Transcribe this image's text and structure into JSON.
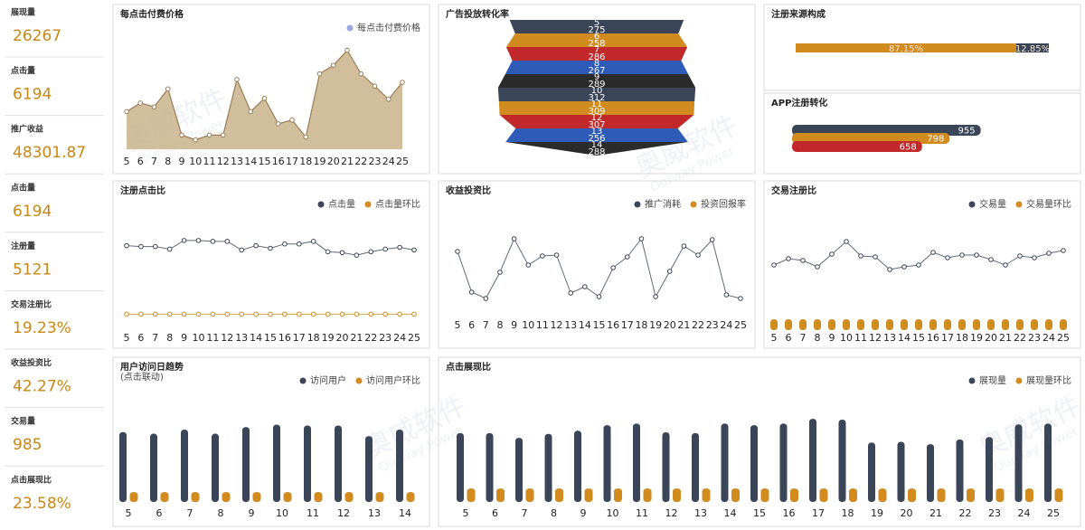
{
  "kpis": [
    {
      "label": "展现量",
      "value": "26267"
    },
    {
      "label": "点击量",
      "value": "6194"
    },
    {
      "label": "推广收益",
      "value": "48301.87"
    },
    {
      "label": "点击量",
      "value": "6194"
    },
    {
      "label": "注册量",
      "value": "5121"
    },
    {
      "label": "交易注册比",
      "value": "19.23%"
    },
    {
      "label": "收益投资比",
      "value": "42.27%"
    },
    {
      "label": "交易量",
      "value": "985"
    },
    {
      "label": "点击展现比",
      "value": "23.58%"
    }
  ],
  "watermark": {
    "name": "奥威软件",
    "brand": "Ourway Power"
  },
  "chart_data": [
    {
      "type": "area",
      "title": "每点击付费价格",
      "x": [
        5,
        6,
        7,
        8,
        9,
        10,
        11,
        12,
        13,
        14,
        15,
        16,
        17,
        18,
        19,
        20,
        21,
        22,
        23,
        24,
        25
      ],
      "series": [
        {
          "name": "每点击付费价格",
          "color": "#9aa7e0",
          "fill": "#c9b38c",
          "line_color": "#9b7d55",
          "values": [
            40,
            49,
            45,
            64,
            15,
            10,
            15,
            15,
            74,
            40,
            54,
            27,
            31,
            13,
            80,
            89,
            105,
            80,
            67,
            53,
            71
          ]
        }
      ],
      "ylim": [
        0,
        120
      ],
      "legend": "top-right"
    },
    {
      "type": "funnel",
      "title": "广告投放转化率",
      "categories": [
        5,
        6,
        7,
        8,
        9,
        10,
        11,
        12,
        13,
        14
      ],
      "values": [
        275,
        258,
        286,
        267,
        289,
        312,
        309,
        307,
        256,
        288
      ],
      "colors": [
        "#3a4558",
        "#d18b1f",
        "#c0282a",
        "#2f5bb8",
        "#2b2b2b"
      ]
    },
    {
      "type": "stacked-bar",
      "title": "注册来源构成",
      "values": [
        87.15,
        12.85
      ],
      "value_labels": [
        "87.15%",
        "12.85%"
      ],
      "colors": [
        "#d18b1f",
        "#3a4558"
      ],
      "xlim": [
        0,
        100
      ]
    },
    {
      "type": "hbar",
      "title": "APP注册转化",
      "values": [
        955,
        798,
        658
      ],
      "colors": [
        "#3a4558",
        "#d18b1f",
        "#c0282a"
      ],
      "xlim": [
        0,
        1300
      ]
    },
    {
      "type": "line",
      "title": "注册点击比",
      "x": [
        5,
        6,
        7,
        8,
        9,
        10,
        11,
        12,
        13,
        14,
        15,
        16,
        17,
        18,
        19,
        20,
        21,
        22,
        23,
        24,
        25
      ],
      "series": [
        {
          "name": "点击量",
          "color": "#3a4558",
          "values": [
            87,
            86,
            86,
            83,
            93,
            93,
            92,
            92,
            82,
            87,
            84,
            89,
            89,
            92,
            80,
            79,
            76,
            80,
            83,
            85,
            82
          ]
        },
        {
          "name": "点击量环比",
          "color": "#d18b1f",
          "values": [
            8,
            8,
            8,
            8,
            8,
            8,
            8,
            8,
            8,
            8,
            8,
            8,
            8,
            8,
            8,
            8,
            8,
            8,
            8,
            8,
            8
          ]
        }
      ],
      "ylim": [
        0,
        120
      ],
      "legend": "top-right"
    },
    {
      "type": "line",
      "title": "收益投资比",
      "x": [
        5,
        6,
        7,
        8,
        9,
        10,
        11,
        12,
        13,
        14,
        15,
        16,
        17,
        18,
        19,
        20,
        21,
        22,
        23,
        24,
        25
      ],
      "series": [
        {
          "name": "推广消耗",
          "color": "#3a4558",
          "values": [
            67,
            22,
            15,
            44,
            81,
            52,
            62,
            63,
            21,
            28,
            17,
            49,
            61,
            81,
            17,
            45,
            73,
            63,
            80,
            19,
            15
          ]
        },
        {
          "name": "投资回报率",
          "color": "#d18b1f",
          "values": [
            null,
            null,
            null,
            null,
            null,
            null,
            null,
            null,
            null,
            null,
            null,
            null,
            null,
            null,
            null,
            null,
            null,
            null,
            null,
            null,
            null
          ]
        }
      ],
      "ylim": [
        0,
        100
      ],
      "legend": "top-right"
    },
    {
      "type": "line",
      "title": "交易注册比",
      "x": [
        5,
        6,
        7,
        8,
        9,
        10,
        11,
        12,
        13,
        14,
        15,
        16,
        17,
        18,
        19,
        20,
        21,
        22,
        23,
        24,
        25
      ],
      "series": [
        {
          "name": "交易量",
          "color": "#3a4558",
          "values": [
            72,
            79,
            77,
            70,
            84,
            98,
            82,
            81,
            67,
            70,
            72,
            86,
            80,
            83,
            83,
            78,
            72,
            82,
            80,
            85,
            88
          ]
        },
        {
          "name": "交易量环比",
          "color": "#d18b1f",
          "type": "bar",
          "values": [
            12,
            12,
            12,
            12,
            12,
            12,
            12,
            12,
            12,
            12,
            12,
            12,
            12,
            12,
            12,
            12,
            12,
            12,
            12,
            12,
            12
          ]
        }
      ],
      "ylim": [
        0,
        120
      ],
      "legend": "top-right"
    },
    {
      "type": "bar",
      "title": "用户访问日趋势",
      "subtitle": "(点击联动)",
      "categories": [
        5,
        6,
        7,
        8,
        9,
        10,
        11,
        12,
        13,
        14
      ],
      "series": [
        {
          "name": "访问用户",
          "color": "#3a4558",
          "values": [
            85,
            83,
            88,
            83,
            91,
            94,
            93,
            93,
            80,
            88
          ]
        },
        {
          "name": "访问用户环比",
          "color": "#d18b1f",
          "values": [
            12,
            12,
            12,
            12,
            12,
            12,
            12,
            12,
            12,
            12
          ]
        }
      ],
      "ylim": [
        0,
        110
      ],
      "legend": "top-right"
    },
    {
      "type": "bar",
      "title": "点击展现比",
      "categories": [
        5,
        6,
        7,
        8,
        9,
        10,
        11,
        12,
        13,
        14,
        15,
        16,
        17,
        18,
        19,
        20,
        21,
        22,
        23,
        24,
        25
      ],
      "series": [
        {
          "name": "展现量",
          "color": "#3a4558",
          "values": [
            87,
            87,
            81,
            86,
            90,
            97,
            99,
            88,
            87,
            99,
            97,
            99,
            105,
            104,
            75,
            76,
            73,
            79,
            82,
            98,
            99
          ]
        },
        {
          "name": "展现量环比",
          "color": "#d18b1f",
          "values": [
            17,
            17,
            17,
            17,
            17,
            17,
            17,
            17,
            17,
            17,
            17,
            17,
            17,
            17,
            17,
            17,
            17,
            17,
            17,
            17,
            17
          ]
        }
      ],
      "ylim": [
        0,
        120
      ],
      "legend": "top-right"
    }
  ]
}
